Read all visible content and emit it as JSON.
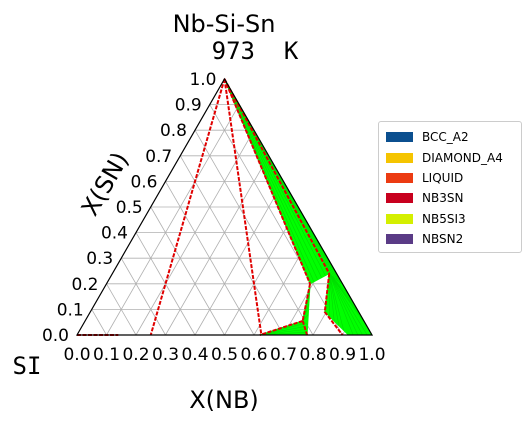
{
  "chart_data": {
    "type": "ternary",
    "title": "Nb-Si-Sn",
    "subtitle": "973  K",
    "corner_label": "SI",
    "xlabel": "X(NB)",
    "ylabel": "X(SN)",
    "xticks": [
      "0.0",
      "0.1",
      "0.2",
      "0.3",
      "0.4",
      "0.5",
      "0.6",
      "0.7",
      "0.8",
      "0.9",
      "1.0"
    ],
    "yticks": [
      "0.0",
      "0.1",
      "0.2",
      "0.3",
      "0.4",
      "0.5",
      "0.6",
      "0.7",
      "0.8",
      "0.9",
      "1.0"
    ],
    "grid": true,
    "legend_position": "right",
    "legend": [
      {
        "name": "BCC_A2",
        "color": "#0b4f8f"
      },
      {
        "name": "DIAMOND_A4",
        "color": "#f5c400"
      },
      {
        "name": "LIQUID",
        "color": "#ec3b12"
      },
      {
        "name": "NB3SN",
        "color": "#c8001e"
      },
      {
        "name": "NB5SI3",
        "color": "#d4ef00"
      },
      {
        "name": "NBSN2",
        "color": "#5a3b86"
      }
    ],
    "tie_region_color": "#00ff00",
    "boundary_color": "#e00000",
    "phase_boundaries": [
      {
        "name": "Sn-corner to X(NB)=0.25",
        "points": [
          [
            0.5,
            1.0
          ],
          [
            0.25,
            0.0
          ]
        ]
      },
      {
        "name": "Sn-corner to X(NB)=0.625",
        "points": [
          [
            0.5,
            1.0
          ],
          [
            0.625,
            0.0
          ]
        ]
      },
      {
        "name": "Sn-corner to NB3SN left",
        "points": [
          [
            0.5,
            1.0
          ],
          [
            0.79,
            0.2
          ]
        ]
      },
      {
        "name": "Sn-corner to NB3SN right",
        "points": [
          [
            0.5,
            1.0
          ],
          [
            0.855,
            0.24
          ]
        ]
      },
      {
        "name": "NB3SN to NB5SI3",
        "points": [
          [
            0.79,
            0.2
          ],
          [
            0.765,
            0.055
          ]
        ]
      },
      {
        "name": "NB5SI3 to bottom",
        "points": [
          [
            0.765,
            0.055
          ],
          [
            0.62,
            0.0
          ]
        ]
      },
      {
        "name": "NB3SN bottom",
        "points": [
          [
            0.855,
            0.24
          ],
          [
            0.84,
            0.09
          ],
          [
            0.9,
            0.0
          ]
        ]
      },
      {
        "name": "NB5SI3 side",
        "points": [
          [
            0.765,
            0.055
          ],
          [
            0.78,
            0.0
          ]
        ]
      },
      {
        "name": "Si edge",
        "points": [
          [
            0.0,
            0.0
          ],
          [
            0.14,
            0.0
          ]
        ]
      }
    ],
    "tie_regions": [
      {
        "name": "NBSN2 + NB3SN",
        "points": [
          [
            0.5,
            1.0
          ],
          [
            0.79,
            0.2
          ],
          [
            0.855,
            0.24
          ],
          [
            0.905,
            0.19
          ]
        ]
      },
      {
        "name": "NB3SN + BCC_A2",
        "points": [
          [
            0.855,
            0.24
          ],
          [
            0.905,
            0.19
          ],
          [
            1.0,
            0.0
          ],
          [
            0.92,
            0.0
          ],
          [
            0.84,
            0.09
          ]
        ]
      },
      {
        "name": "NB5SI3 + NB3SN",
        "points": [
          [
            0.765,
            0.055
          ],
          [
            0.79,
            0.2
          ],
          [
            0.78,
            0.0
          ]
        ]
      },
      {
        "name": "NB5SI3 + SI-rich",
        "points": [
          [
            0.62,
            0.0
          ],
          [
            0.765,
            0.055
          ],
          [
            0.78,
            0.0
          ]
        ]
      }
    ]
  }
}
